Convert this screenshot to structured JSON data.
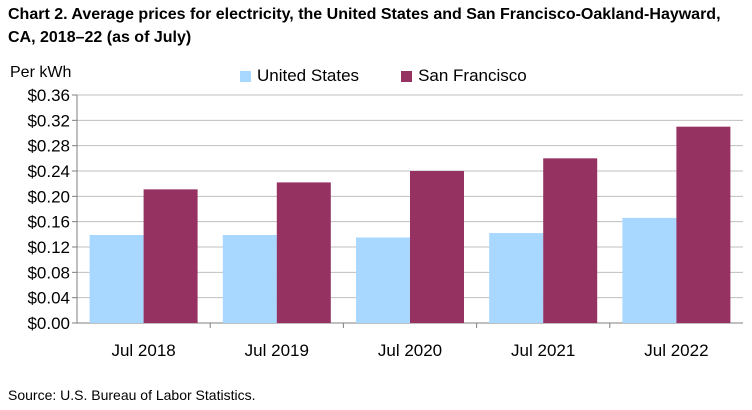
{
  "chart_data": {
    "type": "bar",
    "title": "Chart 2. Average prices for electricity, the United States and San Francisco-Oakland-Hayward, CA, 2018–22 (as of July)",
    "ylabel": "Per kWh",
    "xlabel": "",
    "categories": [
      "Jul 2018",
      "Jul 2019",
      "Jul 2020",
      "Jul 2021",
      "Jul 2022"
    ],
    "series": [
      {
        "name": "United States",
        "color": "#a8d7ff",
        "values": [
          0.139,
          0.139,
          0.135,
          0.142,
          0.166
        ]
      },
      {
        "name": "San Francisco",
        "color": "#953262",
        "values": [
          0.211,
          0.222,
          0.24,
          0.26,
          0.31
        ]
      }
    ],
    "ylim": [
      0,
      0.36
    ],
    "yticks": [
      0,
      0.04,
      0.08,
      0.12,
      0.16,
      0.2,
      0.24,
      0.28,
      0.32,
      0.36
    ],
    "ytick_labels": [
      "$0.00",
      "$0.04",
      "$0.08",
      "$0.12",
      "$0.16",
      "$0.20",
      "$0.24",
      "$0.28",
      "$0.32",
      "$0.36"
    ],
    "grid": true,
    "legend": "top-center",
    "source": "Source: U.S. Bureau of Labor Statistics."
  }
}
